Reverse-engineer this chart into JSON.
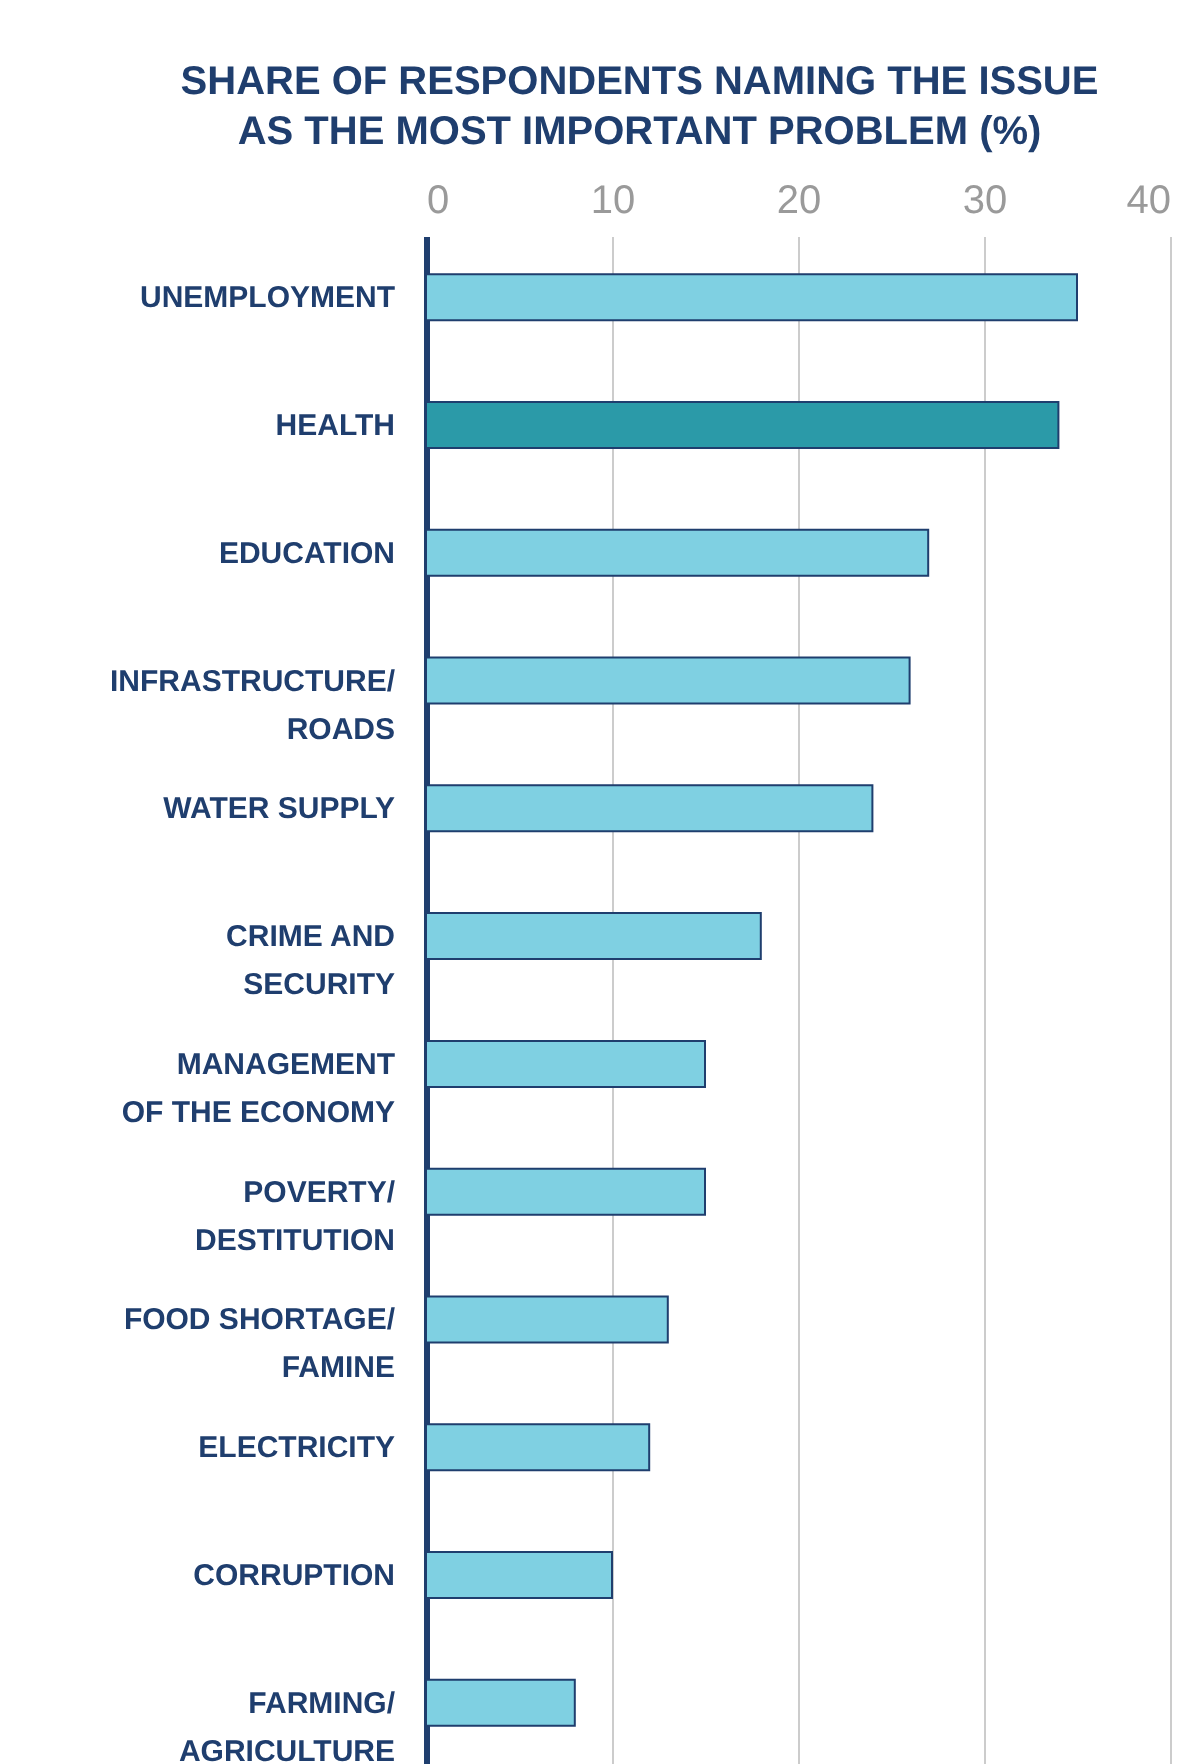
{
  "chart_data": {
    "type": "bar",
    "orientation": "horizontal",
    "title": "SHARE OF RESPONDENTS NAMING THE ISSUE\nAS THE MOST IMPORTANT PROBLEM (%)",
    "categories": [
      "UNEMPLOYMENT",
      "HEALTH",
      "EDUCATION",
      "INFRASTRUCTURE/\nROADS",
      "WATER SUPPLY",
      "CRIME AND\nSECURITY",
      "MANAGEMENT\nOF THE ECONOMY",
      "POVERTY/\nDESTITUTION",
      "FOOD SHORTAGE/\nFAMINE",
      "ELECTRICITY",
      "CORRUPTION",
      "FARMING/\nAGRICULTURE"
    ],
    "values": [
      35,
      34,
      27,
      26,
      24,
      18,
      15,
      15,
      13,
      12,
      10,
      8
    ],
    "colors": [
      "#7fd0e2",
      "#2b9aa8",
      "#7fd0e2",
      "#7fd0e2",
      "#7fd0e2",
      "#7fd0e2",
      "#7fd0e2",
      "#7fd0e2",
      "#7fd0e2",
      "#7fd0e2",
      "#7fd0e2",
      "#7fd0e2"
    ],
    "xlim": [
      0,
      40
    ],
    "xticks": [
      0,
      10,
      20,
      30,
      40
    ],
    "grid": true,
    "legend": false
  }
}
